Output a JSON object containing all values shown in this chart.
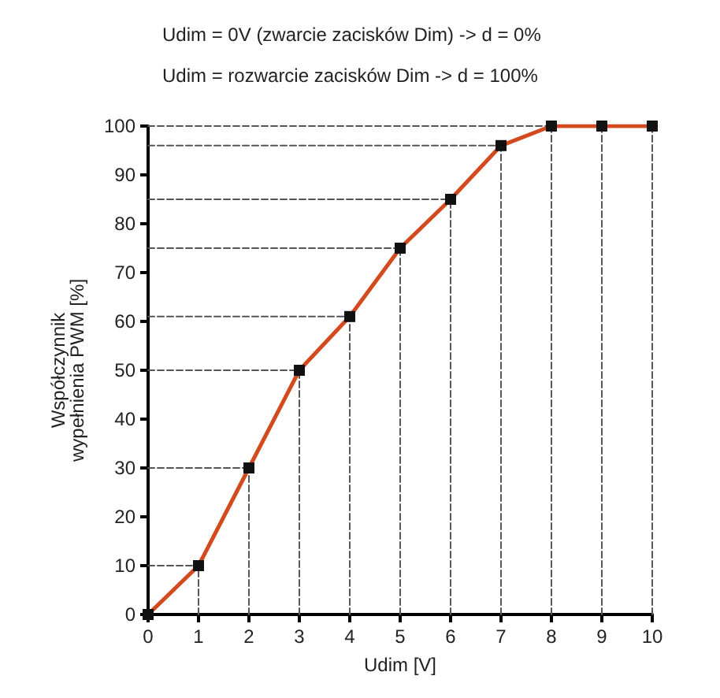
{
  "chart_data": {
    "type": "line",
    "annotations": [
      "Udim = 0V (zwarcie zacisków Dim) -> d = 0%",
      "Udim = rozwarcie zacisków Dim -> d = 100%"
    ],
    "xlabel": "Udim [V]",
    "ylabel": "Współczynnik\nwypełnienia PWM [%]",
    "x": [
      0,
      1,
      2,
      3,
      4,
      5,
      6,
      7,
      8,
      9,
      10
    ],
    "series": [
      {
        "color": "#d24a1e",
        "marker": "square",
        "values": [
          0,
          10,
          30,
          50,
          61,
          75,
          85,
          96,
          100,
          100,
          100
        ]
      },
      {
        "color": "#555555",
        "marker": "none",
        "line_style": "dashed",
        "x": [
          1,
          1
        ],
        "values": [
          0,
          10
        ]
      },
      {
        "color": "#555555",
        "marker": "none",
        "line_style": "dashed",
        "x": [
          2,
          2
        ],
        "values": [
          0,
          30
        ]
      },
      {
        "color": "#555555",
        "marker": "none",
        "line_style": "dashed",
        "x": [
          3,
          3
        ],
        "values": [
          0,
          50
        ]
      },
      {
        "color": "#555555",
        "marker": "none",
        "line_style": "dashed",
        "x": [
          4,
          4
        ],
        "values": [
          0,
          61
        ]
      },
      {
        "color": "#555555",
        "marker": "none",
        "line_style": "dashed",
        "x": [
          5,
          5
        ],
        "values": [
          0,
          75
        ]
      },
      {
        "color": "#555555",
        "marker": "none",
        "line_style": "dashed",
        "x": [
          6,
          6
        ],
        "values": [
          0,
          85
        ]
      },
      {
        "color": "#555555",
        "marker": "none",
        "line_style": "dashed",
        "x": [
          7,
          7
        ],
        "values": [
          0,
          96
        ]
      },
      {
        "color": "#555555",
        "marker": "none",
        "line_style": "dashed",
        "x": [
          8,
          8
        ],
        "values": [
          0,
          100
        ]
      },
      {
        "color": "#555555",
        "marker": "none",
        "line_style": "dashed",
        "x": [
          9,
          9
        ],
        "values": [
          0,
          100
        ]
      },
      {
        "color": "#555555",
        "marker": "none",
        "line_style": "dashed",
        "x": [
          10,
          10
        ],
        "values": [
          0,
          100
        ]
      },
      {
        "color": "#555555",
        "marker": "none",
        "line_style": "dashed",
        "x": [
          0,
          1
        ],
        "values": [
          10,
          10
        ]
      },
      {
        "color": "#555555",
        "marker": "none",
        "line_style": "dashed",
        "x": [
          0,
          2
        ],
        "values": [
          30,
          30
        ]
      },
      {
        "color": "#555555",
        "marker": "none",
        "line_style": "dashed",
        "x": [
          0,
          3
        ],
        "values": [
          50,
          50
        ]
      },
      {
        "color": "#555555",
        "marker": "none",
        "line_style": "dashed",
        "x": [
          0,
          4
        ],
        "values": [
          61,
          61
        ]
      },
      {
        "color": "#555555",
        "marker": "none",
        "line_style": "dashed",
        "x": [
          0,
          5
        ],
        "values": [
          75,
          75
        ]
      },
      {
        "color": "#555555",
        "marker": "none",
        "line_style": "dashed",
        "x": [
          0,
          6
        ],
        "values": [
          85,
          85
        ]
      },
      {
        "color": "#555555",
        "marker": "none",
        "line_style": "dashed",
        "x": [
          0,
          7
        ],
        "values": [
          96,
          96
        ]
      },
      {
        "color": "#555555",
        "marker": "none",
        "line_style": "dashed",
        "x": [
          0,
          8
        ],
        "values": [
          100,
          100
        ]
      }
    ],
    "xlim": [
      0,
      10
    ],
    "xticks": [
      0,
      1,
      2,
      3,
      4,
      5,
      6,
      7,
      8,
      9,
      10
    ],
    "ylim": [
      0,
      100
    ],
    "yticks": [
      0,
      10,
      20,
      30,
      40,
      50,
      60,
      70,
      80,
      90,
      100
    ],
    "line_style": "solid"
  }
}
